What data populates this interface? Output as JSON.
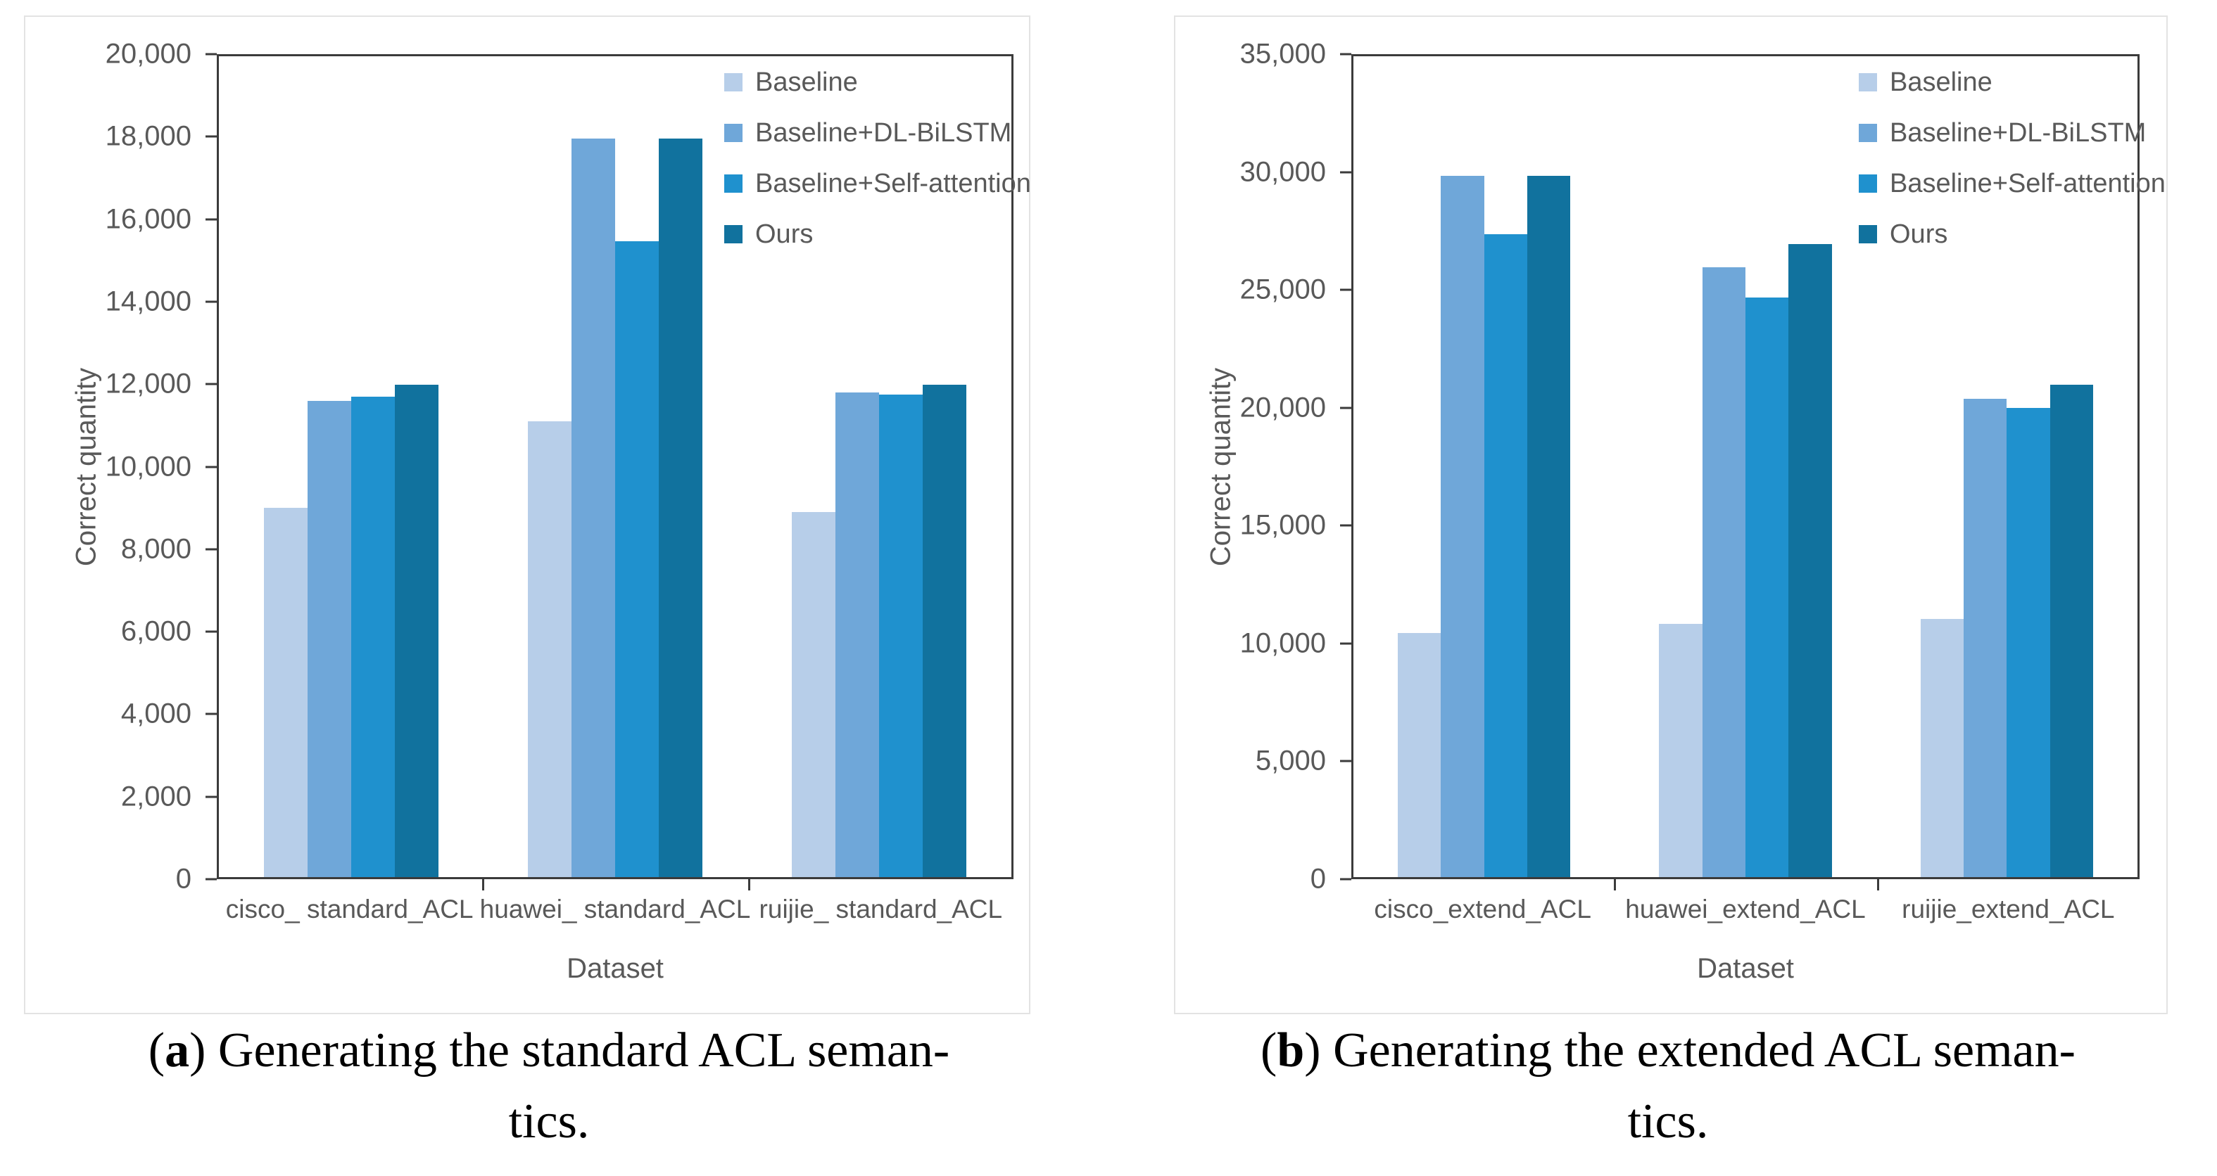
{
  "chart_data": [
    {
      "id": "a",
      "type": "bar",
      "xlabel": "Dataset",
      "ylabel": "Correct quantity",
      "ylim": [
        0,
        20000
      ],
      "ytick_step": 2000,
      "grid": false,
      "legend_position": "top-right-inside",
      "categories": [
        "cisco_ standard_ACL",
        "huawei_ standard_ACL",
        "ruijie_ standard_ACL"
      ],
      "series": [
        {
          "name": "Baseline",
          "color": "#B7CEE9",
          "values": [
            9000,
            11100,
            8900
          ]
        },
        {
          "name": "Baseline+DL-BiLSTM",
          "color": "#6FA7D9",
          "values": [
            11600,
            18000,
            11800
          ]
        },
        {
          "name": "Baseline+Self-attention",
          "color": "#1F91CE",
          "values": [
            11700,
            15500,
            11750
          ]
        },
        {
          "name": "Ours",
          "color": "#11729E",
          "values": [
            12000,
            18000,
            12000
          ]
        }
      ]
    },
    {
      "id": "b",
      "type": "bar",
      "xlabel": "Dataset",
      "ylabel": "Correct quantity",
      "ylim": [
        0,
        35000
      ],
      "ytick_step": 5000,
      "grid": false,
      "legend_position": "top-right-inside",
      "categories": [
        "cisco_extend_ACL",
        "huawei_extend_ACL",
        "ruijie_extend_ACL"
      ],
      "series": [
        {
          "name": "Baseline",
          "color": "#B7CEE9",
          "values": [
            10400,
            10800,
            11000
          ]
        },
        {
          "name": "Baseline+DL-BiLSTM",
          "color": "#6FA7D9",
          "values": [
            29900,
            26000,
            20400
          ]
        },
        {
          "name": "Baseline+Self-attention",
          "color": "#1F91CE",
          "values": [
            27400,
            24700,
            20000
          ]
        },
        {
          "name": "Ours",
          "color": "#11729E",
          "values": [
            29900,
            27000,
            21000
          ]
        }
      ]
    }
  ],
  "captions": [
    {
      "marker": "a",
      "open": "(",
      "close": ") ",
      "line1": "Generating the standard ACL seman-",
      "line2": "tics."
    },
    {
      "marker": "b",
      "open": "(",
      "close": ") ",
      "line1": "Generating the extended ACL seman-",
      "line2": "tics."
    }
  ],
  "colors": {
    "axis": "#3b3b3b",
    "tick_text": "#595959",
    "panel_border": "#e3e3e3",
    "background": "#ffffff"
  }
}
